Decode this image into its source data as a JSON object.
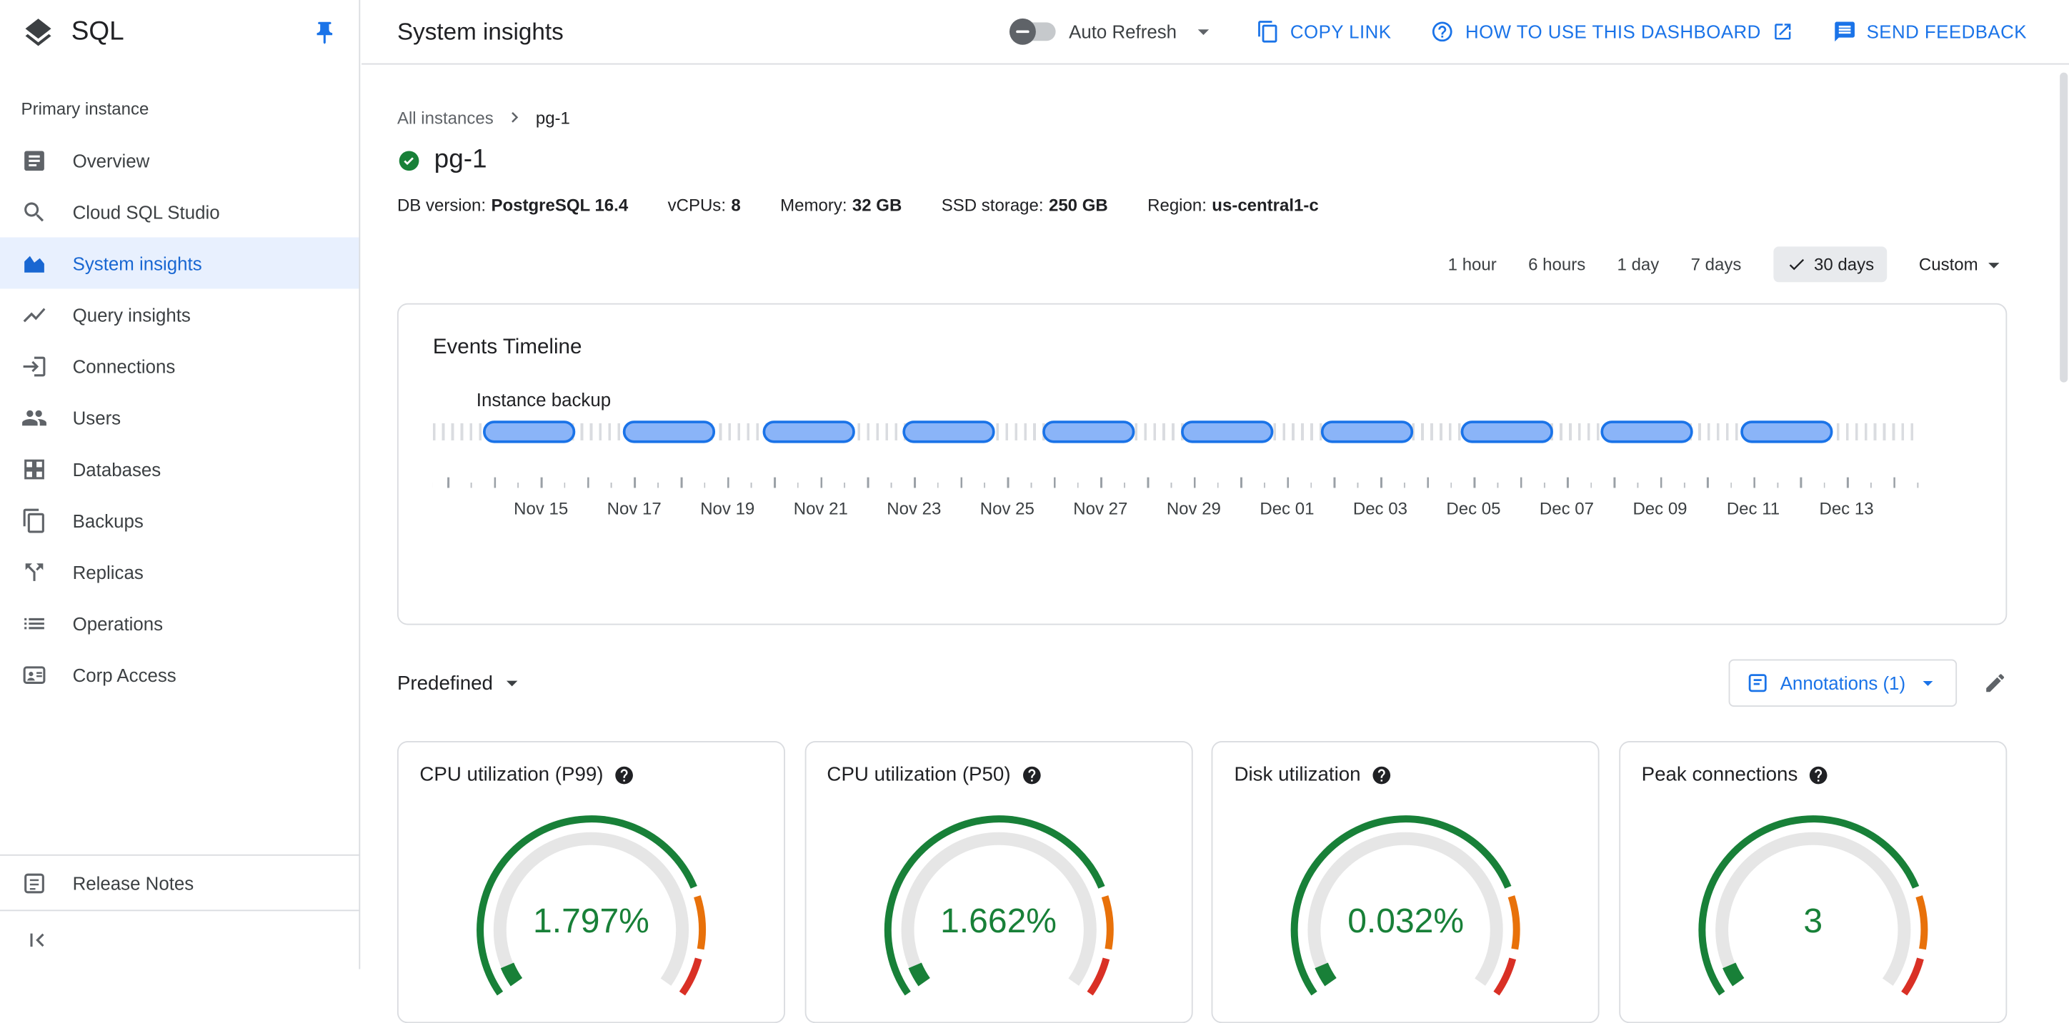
{
  "app": {
    "name": "SQL"
  },
  "colors": {
    "accent_blue": "#1a73e8",
    "selected_nav_bg": "#e8f0fe",
    "gauge_green": "#188038",
    "gauge_orange": "#e8710a",
    "gauge_red": "#d93025",
    "event_pill_fill": "#8ab4f8",
    "event_pill_border": "#1a73e8",
    "status_green": "#188038"
  },
  "sidebar": {
    "section_label": "Primary instance",
    "items": [
      {
        "label": "Overview",
        "selected": false
      },
      {
        "label": "Cloud SQL Studio",
        "selected": false
      },
      {
        "label": "System insights",
        "selected": true
      },
      {
        "label": "Query insights",
        "selected": false
      },
      {
        "label": "Connections",
        "selected": false
      },
      {
        "label": "Users",
        "selected": false
      },
      {
        "label": "Databases",
        "selected": false
      },
      {
        "label": "Backups",
        "selected": false
      },
      {
        "label": "Replicas",
        "selected": false
      },
      {
        "label": "Operations",
        "selected": false
      },
      {
        "label": "Corp Access",
        "selected": false
      }
    ],
    "release_notes_label": "Release Notes"
  },
  "header": {
    "title": "System insights",
    "auto_refresh_label": "Auto Refresh",
    "auto_refresh_state": "off",
    "copy_link_label": "COPY LINK",
    "how_to_label": "HOW TO USE THIS DASHBOARD",
    "feedback_label": "SEND FEEDBACK"
  },
  "breadcrumb": {
    "root": "All instances",
    "current": "pg-1"
  },
  "instance": {
    "name": "pg-1",
    "status": "healthy",
    "meta": [
      {
        "label": "DB version:",
        "value": "PostgreSQL 16.4"
      },
      {
        "label": "vCPUs:",
        "value": "8"
      },
      {
        "label": "Memory:",
        "value": "32 GB"
      },
      {
        "label": "SSD storage:",
        "value": "250 GB"
      },
      {
        "label": "Region:",
        "value": "us-central1-c"
      }
    ]
  },
  "time_range": {
    "options": [
      "1 hour",
      "6 hours",
      "1 day",
      "7 days",
      "30 days",
      "Custom"
    ],
    "selected": "30 days"
  },
  "metrics_toolbar": {
    "predefined_label": "Predefined",
    "annotations_label": "Annotations (1)"
  },
  "chart_data": [
    {
      "type": "timeline",
      "title": "Events Timeline",
      "series": [
        {
          "name": "Instance backup",
          "events": [
            "Nov 15",
            "Nov 18",
            "Nov 21",
            "Nov 24",
            "Nov 27",
            "Nov 30",
            "Dec 03",
            "Dec 06",
            "Dec 09",
            "Dec 12"
          ]
        }
      ],
      "x_tick_labels": [
        "Nov 15",
        "Nov 17",
        "Nov 19",
        "Nov 21",
        "Nov 23",
        "Nov 25",
        "Nov 27",
        "Nov 29",
        "Dec 01",
        "Dec 03",
        "Dec 05",
        "Dec 07",
        "Dec 09",
        "Dec 11",
        "Dec 13"
      ],
      "x_range": "30 days"
    },
    {
      "type": "gauge",
      "title": "CPU utilization (P99)",
      "value": 1.797,
      "display": "1.797%",
      "unit": "%",
      "min": 0,
      "max": 100,
      "ranges": [
        {
          "color": "#188038",
          "to_fraction": 0.78
        },
        {
          "color": "#e8710a",
          "to_fraction": 0.9
        },
        {
          "color": "#d93025",
          "to_fraction": 1.0
        }
      ]
    },
    {
      "type": "gauge",
      "title": "CPU utilization (P50)",
      "value": 1.662,
      "display": "1.662%",
      "unit": "%",
      "min": 0,
      "max": 100,
      "ranges": [
        {
          "color": "#188038",
          "to_fraction": 0.78
        },
        {
          "color": "#e8710a",
          "to_fraction": 0.9
        },
        {
          "color": "#d93025",
          "to_fraction": 1.0
        }
      ]
    },
    {
      "type": "gauge",
      "title": "Disk utilization",
      "value": 0.032,
      "display": "0.032%",
      "unit": "%",
      "min": 0,
      "max": 100,
      "ranges": [
        {
          "color": "#188038",
          "to_fraction": 0.78
        },
        {
          "color": "#e8710a",
          "to_fraction": 0.9
        },
        {
          "color": "#d93025",
          "to_fraction": 1.0
        }
      ]
    },
    {
      "type": "gauge",
      "title": "Peak connections",
      "value": 3,
      "display": "3",
      "unit": "",
      "min": 0,
      "max": null,
      "ranges": [
        {
          "color": "#188038",
          "to_fraction": 0.78
        },
        {
          "color": "#e8710a",
          "to_fraction": 0.9
        },
        {
          "color": "#d93025",
          "to_fraction": 1.0
        }
      ]
    }
  ]
}
